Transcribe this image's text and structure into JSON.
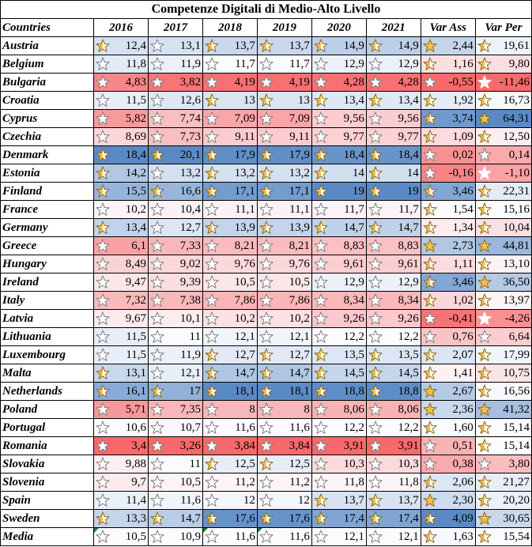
{
  "title": "Competenze Digitali di Medio-Alto Livello",
  "headers": [
    "Countries",
    "2016",
    "2017",
    "2018",
    "2019",
    "2020",
    "2021",
    "Var Ass",
    "Var Per"
  ],
  "rows": [
    {
      "country": "Austria",
      "values": [
        "12,4",
        "13,1",
        "13,7",
        "13,7",
        "14,9",
        "14,9",
        "2,44",
        "19,61"
      ]
    },
    {
      "country": "Belgium",
      "values": [
        "11,8",
        "11,9",
        "11,7",
        "11,7",
        "12,9",
        "12,9",
        "1,16",
        "9,80"
      ]
    },
    {
      "country": "Bulgaria",
      "values": [
        "4,83",
        "3,82",
        "4,19",
        "4,19",
        "4,28",
        "4,28",
        "-0,55",
        "-11,46"
      ]
    },
    {
      "country": "Croatia",
      "values": [
        "11,5",
        "12,6",
        "13",
        "13",
        "13,4",
        "13,4",
        "1,92",
        "16,73"
      ]
    },
    {
      "country": "Cyprus",
      "values": [
        "5,82",
        "7,74",
        "7,09",
        "7,09",
        "9,56",
        "9,56",
        "3,74",
        "64,31"
      ]
    },
    {
      "country": "Czechia",
      "values": [
        "8,69",
        "7,73",
        "9,11",
        "9,11",
        "9,77",
        "9,77",
        "1,09",
        "12,50"
      ]
    },
    {
      "country": "Denmark",
      "values": [
        "18,4",
        "20,1",
        "17,9",
        "17,9",
        "18,4",
        "18,4",
        "0,02",
        "0,14"
      ]
    },
    {
      "country": "Estonia",
      "values": [
        "14,2",
        "13,2",
        "13,2",
        "13,2",
        "14",
        "14",
        "-0,16",
        "-1,10"
      ]
    },
    {
      "country": "Finland",
      "values": [
        "15,5",
        "16,6",
        "17,1",
        "17,1",
        "19",
        "19",
        "3,46",
        "22,31"
      ]
    },
    {
      "country": "France",
      "values": [
        "10,2",
        "10,4",
        "11,1",
        "11,1",
        "11,7",
        "11,7",
        "1,54",
        "15,16"
      ]
    },
    {
      "country": "Germany",
      "values": [
        "13,4",
        "12,7",
        "13,9",
        "13,9",
        "14,7",
        "14,7",
        "1,34",
        "10,04"
      ]
    },
    {
      "country": "Greece",
      "values": [
        "6,1",
        "7,33",
        "8,21",
        "8,21",
        "8,83",
        "8,83",
        "2,73",
        "44,81"
      ]
    },
    {
      "country": "Hungary",
      "values": [
        "8,49",
        "9,02",
        "9,76",
        "9,76",
        "9,61",
        "9,61",
        "1,11",
        "13,10"
      ]
    },
    {
      "country": "Ireland",
      "values": [
        "9,47",
        "9,39",
        "10,5",
        "10,5",
        "12,9",
        "12,9",
        "3,46",
        "36,50"
      ]
    },
    {
      "country": "Italy",
      "values": [
        "7,32",
        "7,38",
        "7,86",
        "7,86",
        "8,34",
        "8,34",
        "1,02",
        "13,97"
      ]
    },
    {
      "country": "Latvia",
      "values": [
        "9,67",
        "10,1",
        "10,2",
        "10,2",
        "9,26",
        "9,26",
        "-0,41",
        "-4,26"
      ]
    },
    {
      "country": "Lithuania",
      "values": [
        "11,5",
        "11",
        "12,1",
        "12,1",
        "12,2",
        "12,2",
        "0,76",
        "6,64"
      ]
    },
    {
      "country": "Luxembourg",
      "values": [
        "11,5",
        "11,9",
        "12,7",
        "12,7",
        "13,5",
        "13,5",
        "2,07",
        "17,99"
      ]
    },
    {
      "country": "Malta",
      "values": [
        "13,1",
        "12,1",
        "14,7",
        "14,7",
        "14,5",
        "14,5",
        "1,41",
        "10,75"
      ]
    },
    {
      "country": "Netherlands",
      "values": [
        "16,1",
        "17",
        "18,1",
        "18,1",
        "18,8",
        "18,8",
        "2,67",
        "16,56"
      ]
    },
    {
      "country": "Poland",
      "values": [
        "5,71",
        "7,35",
        "8",
        "8",
        "8,06",
        "8,06",
        "2,36",
        "41,32"
      ]
    },
    {
      "country": "Portugal",
      "values": [
        "10,6",
        "10,7",
        "11,6",
        "11,6",
        "12,2",
        "12,2",
        "1,60",
        "15,14"
      ]
    },
    {
      "country": "Romania",
      "values": [
        "3,4",
        "3,26",
        "3,84",
        "3,84",
        "3,91",
        "3,91",
        "0,51",
        "15,14"
      ]
    },
    {
      "country": "Slovakia",
      "values": [
        "9,88",
        "11",
        "12,5",
        "12,5",
        "10,3",
        "10,3",
        "0,38",
        "3,80"
      ]
    },
    {
      "country": "Slovenia",
      "values": [
        "9,7",
        "10,5",
        "11,2",
        "11,2",
        "11,8",
        "11,8",
        "2,06",
        "21,27"
      ]
    },
    {
      "country": "Spain",
      "values": [
        "11,4",
        "11,6",
        "12",
        "12",
        "13,7",
        "13,7",
        "2,30",
        "20,20"
      ]
    },
    {
      "country": "Sweden",
      "values": [
        "13,3",
        "14,7",
        "17,6",
        "17,6",
        "17,4",
        "17,4",
        "4,09",
        "30,65"
      ]
    },
    {
      "country": "Media",
      "values": [
        "10,5",
        "10,9",
        "11,6",
        "11,6",
        "12,1",
        "12,1",
        "1,63",
        "15,54"
      ]
    }
  ],
  "colors": {
    "low": "#f8696b",
    "mid": "#fcfcff",
    "high": "#5a8ac6",
    "star_fill": "#f4c04a",
    "flag": "#1e7b34"
  },
  "icons": [
    "star-empty-icon",
    "star-half-icon",
    "star-full-icon"
  ]
}
